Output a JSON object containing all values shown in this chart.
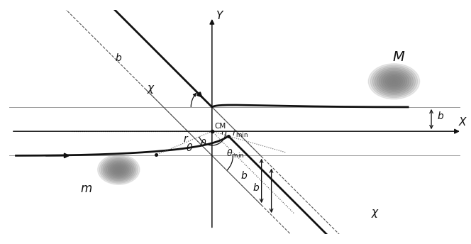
{
  "figsize": [
    6.64,
    3.44
  ],
  "dpi": 100,
  "bg_color": "#ffffff",
  "lc": "#111111",
  "gc": "#888888",
  "xlim": [
    -4.5,
    5.5
  ],
  "ylim": [
    -2.2,
    2.6
  ],
  "b": 0.52,
  "chi_deg": 130,
  "rmin_x": 0.38,
  "rmin_y": -0.18,
  "cm_x": 0.0,
  "cm_y": 0.0
}
